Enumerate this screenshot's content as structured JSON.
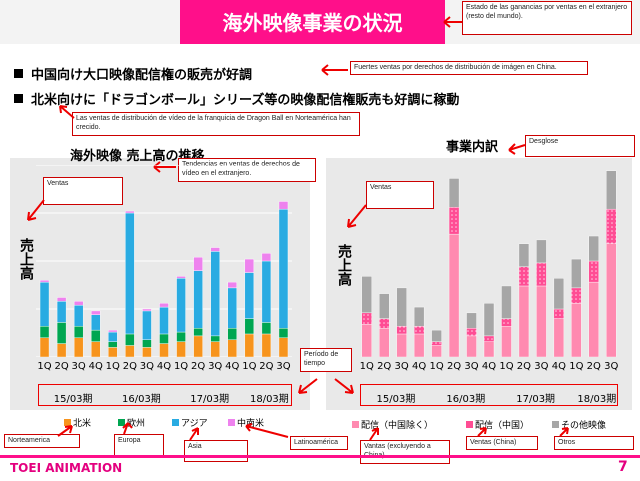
{
  "header": {
    "title": "海外映像事業の状況"
  },
  "bullets": [
    {
      "text": "中国向け大口映像配信権の販売が好調"
    },
    {
      "text": "北米向けに「ドラゴンボール」シリーズ等の映像配信権販売も好調に稼動"
    }
  ],
  "notes": {
    "title_note": "Estado de las ganancias por ventas en el extranjero (resto del mundo).",
    "bullet1_note": "Fuertes ventas por derechos de distribución de imágen en China.",
    "bullet2_note": "Las ventas de distribución de vídeo de la franquicia de Dragon Ball en Norteamérica han crecido.",
    "left_title_note": "Tendencias en ventas de  derechos de vídeo en el extranjero.",
    "left_ventas": "Ventas",
    "right_title_note": "Desglose",
    "right_ventas": "Ventas",
    "periodo": "Período de tiempo",
    "norteamerica": "Norteamerica",
    "europa": "Europa",
    "asia": "Asia",
    "latinoamerica": "Latinoamérica",
    "ventas_excl_china": "Vantas (excluyendo a China)",
    "ventas_china": "Ventas (China)",
    "otros": "Otros"
  },
  "left_chart": {
    "title": "海外映像 売上高の推移",
    "ylabel": "売上高",
    "legend": [
      {
        "label": "北米",
        "color": "#f7941d"
      },
      {
        "label": "欧州",
        "color": "#00a651"
      },
      {
        "label": "アジア",
        "color": "#29abe2"
      },
      {
        "label": "中南米",
        "color": "#ee82ee"
      }
    ]
  },
  "right_chart": {
    "title": "事業内訳",
    "ylabel": "売上高",
    "legend": [
      {
        "label": "配信（中国除く）",
        "color": "#ff8ab0"
      },
      {
        "label": "配信（中国）",
        "color": "#ff4d94"
      },
      {
        "label": "その他映像",
        "color": "#a6a6a6"
      }
    ]
  },
  "axis": {
    "quarters": [
      "1Q",
      "2Q",
      "3Q",
      "4Q",
      "1Q",
      "2Q",
      "3Q",
      "4Q",
      "1Q",
      "2Q",
      "3Q",
      "4Q",
      "1Q",
      "2Q",
      "3Q"
    ],
    "years": [
      "15/03期",
      "16/03期",
      "17/03期",
      "18/03期"
    ]
  },
  "chart_data": [
    {
      "type": "bar",
      "title": "海外映像 売上高の推移",
      "ylabel": "売上高",
      "categories": [
        "15/03 1Q",
        "15/03 2Q",
        "15/03 3Q",
        "15/03 4Q",
        "16/03 1Q",
        "16/03 2Q",
        "16/03 3Q",
        "16/03 4Q",
        "17/03 1Q",
        "17/03 2Q",
        "17/03 3Q",
        "17/03 4Q",
        "18/03 1Q",
        "18/03 2Q",
        "18/03 3Q"
      ],
      "ylim": [
        0,
        100
      ],
      "series": [
        {
          "name": "北米",
          "color": "#f7941d",
          "values": [
            10,
            7,
            10,
            8,
            5,
            6,
            5,
            7,
            8,
            11,
            8,
            9,
            12,
            12,
            10
          ]
        },
        {
          "name": "欧州",
          "color": "#00a651",
          "values": [
            6,
            11,
            6,
            6,
            3,
            6,
            4,
            5,
            5,
            4,
            3,
            6,
            8,
            6,
            5
          ]
        },
        {
          "name": "アジア",
          "color": "#29abe2",
          "values": [
            23,
            11,
            11,
            8,
            5,
            63,
            15,
            14,
            28,
            30,
            44,
            21,
            24,
            32,
            62
          ]
        },
        {
          "name": "中南米",
          "color": "#ee82ee",
          "values": [
            1,
            2,
            2,
            2,
            1,
            1,
            1,
            2,
            1,
            7,
            2,
            3,
            7,
            4,
            4
          ]
        }
      ]
    },
    {
      "type": "bar",
      "title": "事業内訳",
      "ylabel": "売上高",
      "categories": [
        "15/03 1Q",
        "15/03 2Q",
        "15/03 3Q",
        "15/03 4Q",
        "16/03 1Q",
        "16/03 2Q",
        "16/03 3Q",
        "16/03 4Q",
        "17/03 1Q",
        "17/03 2Q",
        "17/03 3Q",
        "17/03 4Q",
        "18/03 1Q",
        "18/03 2Q",
        "18/03 3Q"
      ],
      "ylim": [
        0,
        100
      ],
      "series": [
        {
          "name": "配信（中国除く）",
          "color": "#ff8ab0",
          "values": [
            17,
            15,
            12,
            12,
            6,
            64,
            11,
            8,
            16,
            37,
            37,
            20,
            28,
            39,
            59
          ]
        },
        {
          "name": "配信（中国）",
          "color": "#ff4d94",
          "values": [
            6,
            5,
            4,
            4,
            2,
            14,
            4,
            3,
            4,
            10,
            12,
            5,
            8,
            11,
            18
          ]
        },
        {
          "name": "その他映像",
          "color": "#a6a6a6",
          "values": [
            19,
            13,
            20,
            10,
            6,
            15,
            8,
            17,
            17,
            12,
            12,
            16,
            15,
            13,
            20
          ]
        }
      ]
    }
  ]
}
